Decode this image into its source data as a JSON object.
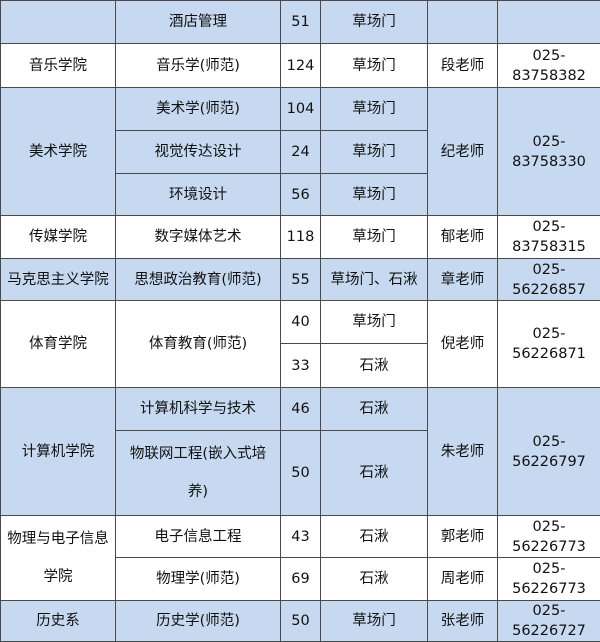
{
  "colors": {
    "shaded": "#c6d9f0",
    "plain": "#ffffff",
    "border": "#4a4a4a"
  },
  "table": {
    "rows": [
      {
        "shaded": true,
        "cells": [
          {
            "name": "college",
            "text": ""
          },
          {
            "name": "major",
            "text": "酒店管理"
          },
          {
            "name": "count",
            "text": "51"
          },
          {
            "name": "campus",
            "text": "草场门"
          },
          {
            "name": "teacher",
            "text": ""
          },
          {
            "name": "phone",
            "text": ""
          }
        ]
      },
      {
        "shaded": false,
        "cells": [
          {
            "name": "college",
            "text": "音乐学院"
          },
          {
            "name": "major",
            "text": "音乐学(师范)"
          },
          {
            "name": "count",
            "text": "124"
          },
          {
            "name": "campus",
            "text": "草场门"
          },
          {
            "name": "teacher",
            "text": "段老师"
          },
          {
            "name": "phone",
            "text": "025-\n83758382"
          }
        ]
      },
      {
        "shaded": true,
        "cells": [
          {
            "name": "college",
            "text": "美术学院",
            "rowspan": 3
          },
          {
            "name": "major",
            "text": "美术学(师范)"
          },
          {
            "name": "count",
            "text": "104"
          },
          {
            "name": "campus",
            "text": "草场门"
          },
          {
            "name": "teacher",
            "text": "纪老师",
            "rowspan": 3
          },
          {
            "name": "phone",
            "text": "025-\n83758330",
            "rowspan": 3
          }
        ]
      },
      {
        "shaded": true,
        "cells": [
          {
            "name": "major",
            "text": "视觉传达设计"
          },
          {
            "name": "count",
            "text": "24"
          },
          {
            "name": "campus",
            "text": "草场门"
          }
        ]
      },
      {
        "shaded": true,
        "cells": [
          {
            "name": "major",
            "text": "环境设计"
          },
          {
            "name": "count",
            "text": "56"
          },
          {
            "name": "campus",
            "text": "草场门"
          }
        ]
      },
      {
        "shaded": false,
        "cells": [
          {
            "name": "college",
            "text": "传媒学院"
          },
          {
            "name": "major",
            "text": "数字媒体艺术"
          },
          {
            "name": "count",
            "text": "118"
          },
          {
            "name": "campus",
            "text": "草场门"
          },
          {
            "name": "teacher",
            "text": "郁老师"
          },
          {
            "name": "phone",
            "text": "025-\n83758315"
          }
        ]
      },
      {
        "shaded": true,
        "cells": [
          {
            "name": "college",
            "text": "马克思主义学院"
          },
          {
            "name": "major",
            "text": "思想政治教育(师范)"
          },
          {
            "name": "count",
            "text": "55"
          },
          {
            "name": "campus",
            "text": "草场门、石湫"
          },
          {
            "name": "teacher",
            "text": "章老师"
          },
          {
            "name": "phone",
            "text": "025-\n56226857"
          }
        ]
      },
      {
        "shaded": false,
        "cells": [
          {
            "name": "college",
            "text": "体育学院",
            "rowspan": 2
          },
          {
            "name": "major",
            "text": "体育教育(师范)",
            "rowspan": 2
          },
          {
            "name": "count",
            "text": "40"
          },
          {
            "name": "campus",
            "text": "草场门"
          },
          {
            "name": "teacher",
            "text": "倪老师",
            "rowspan": 2
          },
          {
            "name": "phone",
            "text": "025-\n56226871",
            "rowspan": 2
          }
        ]
      },
      {
        "shaded": false,
        "cells": [
          {
            "name": "count",
            "text": "33"
          },
          {
            "name": "campus",
            "text": "石湫"
          }
        ]
      },
      {
        "shaded": true,
        "cells": [
          {
            "name": "college",
            "text": "计算机学院",
            "rowspan": 2
          },
          {
            "name": "major",
            "text": "计算机科学与技术"
          },
          {
            "name": "count",
            "text": "46"
          },
          {
            "name": "campus",
            "text": "石湫"
          },
          {
            "name": "teacher",
            "text": "朱老师",
            "rowspan": 2
          },
          {
            "name": "phone",
            "text": "025-\n56226797",
            "rowspan": 2
          }
        ]
      },
      {
        "shaded": true,
        "cells": [
          {
            "name": "major",
            "text": "物联网工程(嵌入式培\n养)",
            "loose": true
          },
          {
            "name": "count",
            "text": "50"
          },
          {
            "name": "campus",
            "text": "石湫"
          }
        ]
      },
      {
        "shaded": false,
        "cells": [
          {
            "name": "college",
            "text": "物理与电子信息\n学院",
            "rowspan": 2,
            "loose": true
          },
          {
            "name": "major",
            "text": "电子信息工程"
          },
          {
            "name": "count",
            "text": "43"
          },
          {
            "name": "campus",
            "text": "石湫"
          },
          {
            "name": "teacher",
            "text": "郭老师"
          },
          {
            "name": "phone",
            "text": "025-\n56226773"
          }
        ]
      },
      {
        "shaded": false,
        "cells": [
          {
            "name": "major",
            "text": "物理学(师范)"
          },
          {
            "name": "count",
            "text": "69"
          },
          {
            "name": "campus",
            "text": "石湫"
          },
          {
            "name": "teacher",
            "text": "周老师"
          },
          {
            "name": "phone",
            "text": "025-\n56226773"
          }
        ]
      },
      {
        "shaded": true,
        "cells": [
          {
            "name": "college",
            "text": "历史系"
          },
          {
            "name": "major",
            "text": "历史学(师范)"
          },
          {
            "name": "count",
            "text": "50"
          },
          {
            "name": "campus",
            "text": "草场门"
          },
          {
            "name": "teacher",
            "text": "张老师"
          },
          {
            "name": "phone",
            "text": "025-\n56226727"
          }
        ]
      }
    ]
  }
}
